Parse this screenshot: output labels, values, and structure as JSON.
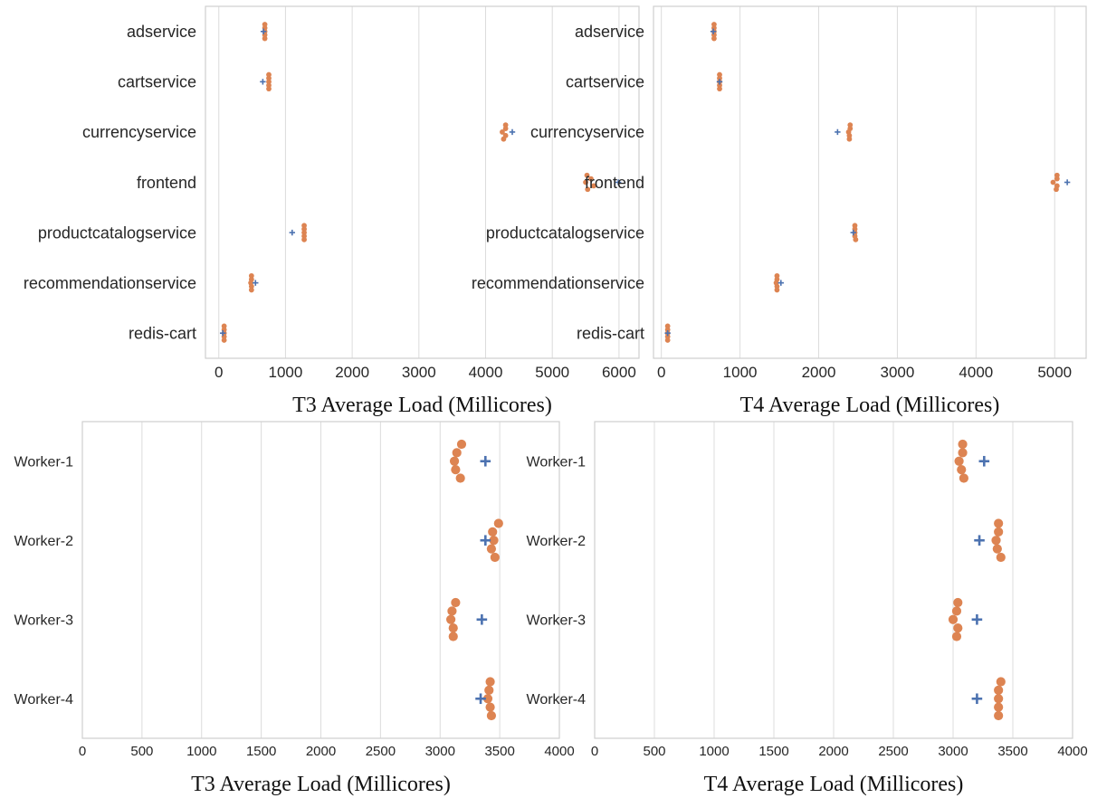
{
  "colors": {
    "observed": "#dd8452",
    "predicted": "#4c72b0",
    "grid": "#dcdcdc",
    "frame": "#cfcfcf"
  },
  "chart_data": [
    {
      "type": "scatter",
      "xlabel": "T3 Average Load (Millicores)",
      "xlim": [
        -200,
        6300
      ],
      "xticks": [
        0,
        1000,
        2000,
        3000,
        4000,
        5000,
        6000
      ],
      "grid": "vertical",
      "categories": [
        "adservice",
        "cartservice",
        "currencyservice",
        "frontend",
        "productcatalogservice",
        "recommendationservice",
        "redis-cart"
      ],
      "series": [
        {
          "marker": "circle",
          "values": [
            [
              690,
              690,
              690,
              690,
              690
            ],
            [
              750,
              750,
              750,
              750,
              750
            ],
            [
              4300,
              4300,
              4250,
              4300,
              4270
            ],
            [
              5520,
              5580,
              5500,
              5620,
              5530
            ],
            [
              1280,
              1280,
              1280,
              1280,
              1280
            ],
            [
              490,
              490,
              480,
              490,
              490
            ],
            [
              80,
              80,
              80,
              80,
              80
            ]
          ]
        },
        {
          "marker": "plus",
          "values": [
            670,
            660,
            4400,
            5990,
            1100,
            550,
            60
          ]
        }
      ]
    },
    {
      "type": "scatter",
      "xlabel": "T4 Average Load (Millicores)",
      "xlim": [
        -100,
        5400
      ],
      "xticks": [
        0,
        1000,
        2000,
        3000,
        4000,
        5000
      ],
      "grid": "vertical",
      "categories": [
        "adservice",
        "cartservice",
        "currencyservice",
        "frontend",
        "productcatalogservice",
        "recommendationservice",
        "redis-cart"
      ],
      "series": [
        {
          "marker": "circle",
          "values": [
            [
              670,
              670,
              670,
              670,
              670
            ],
            [
              740,
              740,
              740,
              740,
              740
            ],
            [
              2400,
              2400,
              2380,
              2390,
              2390
            ],
            [
              5030,
              5030,
              4980,
              5030,
              5020
            ],
            [
              2460,
              2460,
              2460,
              2460,
              2470
            ],
            [
              1470,
              1470,
              1460,
              1470,
              1470
            ],
            [
              80,
              80,
              80,
              80,
              80
            ]
          ]
        },
        {
          "marker": "plus",
          "values": [
            660,
            740,
            2240,
            5160,
            2440,
            1520,
            80
          ]
        }
      ]
    },
    {
      "type": "scatter",
      "xlabel": "T3 Average Load (Millicores)",
      "xlim": [
        0,
        4000
      ],
      "xticks": [
        0,
        500,
        1000,
        1500,
        2000,
        2500,
        3000,
        3500,
        4000
      ],
      "grid": "vertical",
      "categories": [
        "Worker-1",
        "Worker-2",
        "Worker-3",
        "Worker-4"
      ],
      "series": [
        {
          "marker": "circle",
          "values": [
            [
              3180,
              3140,
              3120,
              3130,
              3170
            ],
            [
              3490,
              3440,
              3450,
              3430,
              3460
            ],
            [
              3130,
              3100,
              3090,
              3110,
              3110
            ],
            [
              3420,
              3410,
              3400,
              3420,
              3430
            ]
          ]
        },
        {
          "marker": "plus",
          "values": [
            3380,
            3380,
            3350,
            3340
          ]
        }
      ]
    },
    {
      "type": "scatter",
      "xlabel": "T4 Average Load (Millicores)",
      "xlim": [
        0,
        4000
      ],
      "xticks": [
        0,
        500,
        1000,
        1500,
        2000,
        2500,
        3000,
        3500,
        4000
      ],
      "grid": "vertical",
      "categories": [
        "Worker-1",
        "Worker-2",
        "Worker-3",
        "Worker-4"
      ],
      "series": [
        {
          "marker": "circle",
          "values": [
            [
              3080,
              3080,
              3050,
              3070,
              3090
            ],
            [
              3380,
              3380,
              3360,
              3370,
              3400
            ],
            [
              3040,
              3030,
              3000,
              3040,
              3030
            ],
            [
              3400,
              3380,
              3380,
              3380,
              3380
            ]
          ]
        },
        {
          "marker": "plus",
          "values": [
            3260,
            3220,
            3200,
            3200
          ]
        }
      ]
    }
  ]
}
